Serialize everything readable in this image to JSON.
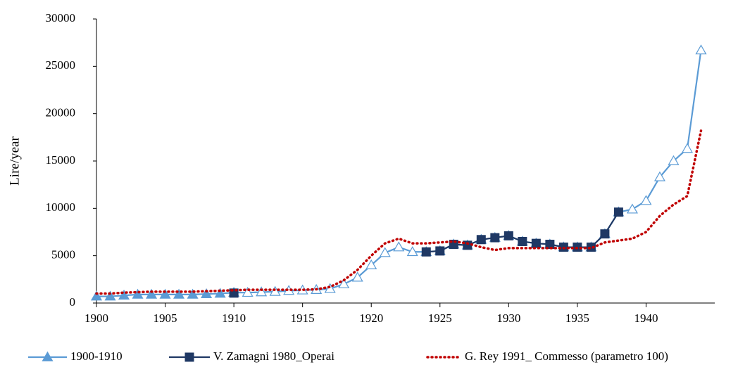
{
  "chart_data": {
    "type": "line",
    "y_label": "Lire/year",
    "x": [
      1900,
      1901,
      1902,
      1903,
      1904,
      1905,
      1906,
      1907,
      1908,
      1909,
      1910,
      1911,
      1912,
      1913,
      1914,
      1915,
      1916,
      1917,
      1918,
      1919,
      1920,
      1921,
      1922,
      1923,
      1924,
      1925,
      1926,
      1927,
      1928,
      1929,
      1930,
      1931,
      1932,
      1933,
      1934,
      1935,
      1936,
      1937,
      1938,
      1939,
      1940,
      1941,
      1942,
      1943,
      1944
    ],
    "xlim": [
      1900,
      1945
    ],
    "xticks": [
      1900,
      1905,
      1910,
      1915,
      1920,
      1925,
      1930,
      1935,
      1940
    ],
    "ylim": [
      0,
      30000
    ],
    "yticks": [
      0,
      5000,
      10000,
      15000,
      20000,
      25000,
      30000
    ],
    "legend": "bottom",
    "series": [
      {
        "name": "1900-1910",
        "color": "#5b9bd5",
        "marker": "triangle",
        "line_style": "solid",
        "marker_filled": [
          true,
          true,
          true,
          true,
          true,
          true,
          true,
          true,
          true,
          true,
          false,
          false,
          false,
          false,
          false,
          false,
          false,
          false,
          false,
          false,
          false,
          false,
          false,
          false,
          false,
          false,
          false,
          false,
          false,
          false,
          false,
          false,
          false,
          false,
          false,
          false,
          false,
          false,
          false,
          false,
          false,
          false,
          false,
          false,
          false
        ],
        "values": [
          700,
          700,
          800,
          900,
          900,
          900,
          900,
          900,
          950,
          1000,
          1100,
          1100,
          1150,
          1200,
          1300,
          1350,
          1400,
          1500,
          2000,
          2700,
          4000,
          5300,
          5900,
          5400,
          5400,
          5500,
          6200,
          6100,
          6700,
          6900,
          7100,
          6500,
          6300,
          6200,
          5900,
          5900,
          5900,
          7300,
          9600,
          9900,
          10800,
          13300,
          15000,
          16300,
          26700
        ]
      },
      {
        "name": "V. Zamagni 1980_Operai",
        "color": "#1f3864",
        "marker": "square",
        "line_style": "solid",
        "values": [
          null,
          null,
          null,
          null,
          null,
          null,
          null,
          null,
          null,
          null,
          1050,
          null,
          null,
          null,
          null,
          null,
          null,
          null,
          null,
          null,
          null,
          null,
          null,
          null,
          5400,
          5500,
          6200,
          6100,
          6700,
          6900,
          7100,
          6500,
          6300,
          6200,
          5900,
          5900,
          5900,
          7300,
          9600,
          null,
          null,
          null,
          null,
          null,
          null
        ]
      },
      {
        "name": "G. Rey 1991_ Commesso (parametro 100)",
        "color": "#c00000",
        "marker": null,
        "line_style": "dotted",
        "values": [
          1000,
          1000,
          1100,
          1150,
          1200,
          1200,
          1200,
          1200,
          1250,
          1300,
          1350,
          1400,
          1400,
          1400,
          1400,
          1400,
          1450,
          1700,
          2400,
          3500,
          5000,
          6300,
          6800,
          6300,
          6300,
          6400,
          6500,
          6300,
          5900,
          5600,
          5800,
          5800,
          5800,
          5800,
          5800,
          5800,
          5800,
          6400,
          6600,
          6800,
          7500,
          9200,
          10400,
          11300,
          18200
        ]
      }
    ]
  }
}
